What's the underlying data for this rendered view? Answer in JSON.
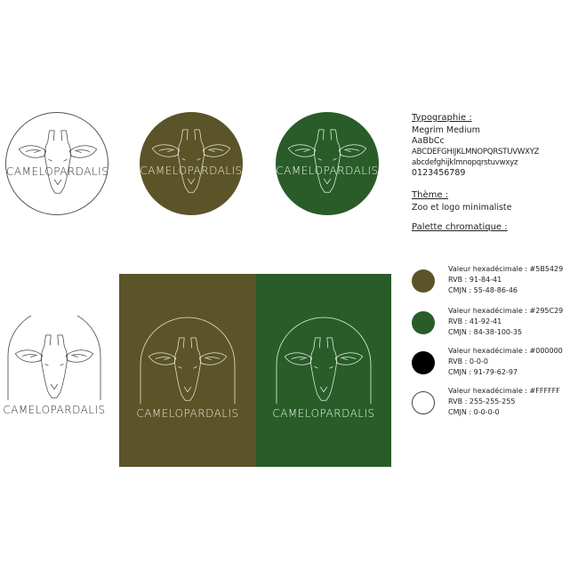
{
  "logo": {
    "wordmark": "CAMELOPARDALIS"
  },
  "colors": {
    "olive": "#5B5429",
    "green": "#295C29",
    "black": "#000000",
    "white": "#FFFFFF",
    "line_dark": "#444444",
    "line_light": "#e8e4d0"
  },
  "typography": {
    "heading": "Typographie :",
    "font_name": "Megrim Medium",
    "sample_pairs": "AaBbCc",
    "uppercase": "ABCDEFGHIJKLMNOPQRSTUVWXYZ",
    "lowercase": "abcdefghijklmnopqrstuvwxyz",
    "digits": "0123456789"
  },
  "theme": {
    "heading": "Thème :",
    "value": "Zoo et logo minimaliste"
  },
  "palette": {
    "heading": "Palette chromatique :",
    "items": [
      {
        "hex_line": "Valeur hexadécimale : #5B5429",
        "rvb_line": "RVB : 91-84-41",
        "cmjn_line": "CMJN : 55-48-86-46",
        "color": "#5B5429"
      },
      {
        "hex_line": "Valeur hexadécimale : #295C29",
        "rvb_line": "RVB : 41-92-41",
        "cmjn_line": "CMJN : 84-38-100-35",
        "color": "#295C29"
      },
      {
        "hex_line": "Valeur hexadécimale : #000000",
        "rvb_line": "RVB : 0-0-0",
        "cmjn_line": "CMJN : 91-79-62-97",
        "color": "#000000"
      },
      {
        "hex_line": "Valeur hexadécimale : #FFFFFF",
        "rvb_line": "RVB : 255-255-255",
        "cmjn_line": "CMJN : 0-0-0-0",
        "color": "#FFFFFF"
      }
    ]
  }
}
